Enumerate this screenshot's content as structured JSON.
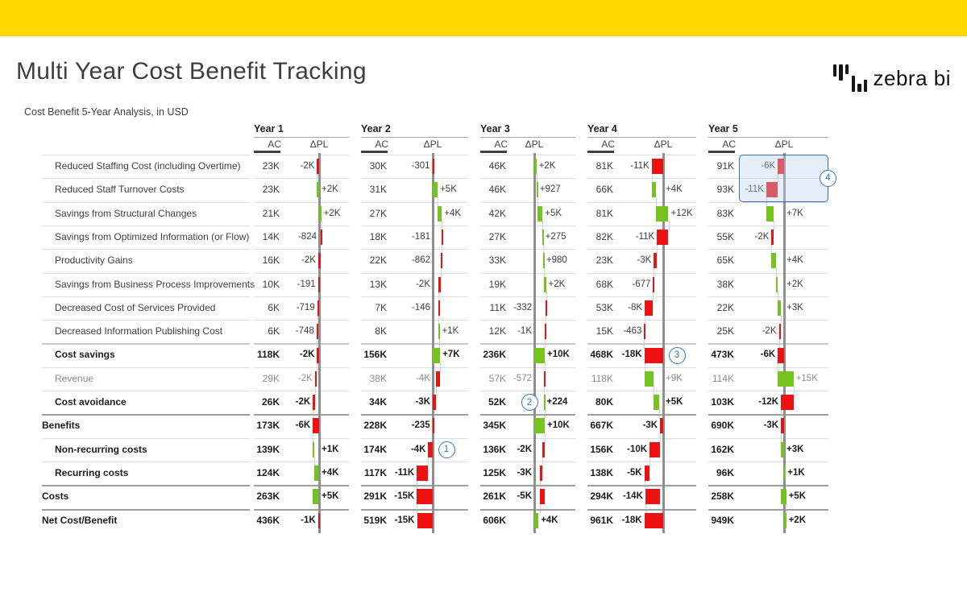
{
  "banner": {
    "color": "#ffd800"
  },
  "header": {
    "title": "Multi Year Cost Benefit Tracking",
    "logo_text": "zebra bi",
    "logo_icon": "zebra-bi-bars-icon"
  },
  "chart_data": {
    "type": "table",
    "title": "Cost Benefit 5-Year Analysis, in USD",
    "unit": "USD",
    "years": [
      "Year 1",
      "Year 2",
      "Year 3",
      "Year 4",
      "Year 5"
    ],
    "columns_per_year": [
      "AC",
      "ΔPL"
    ],
    "variance_chart": "waterfall",
    "colors": {
      "positive": "#74c41d",
      "negative": "#ee1111",
      "axis": "#8f8f8f",
      "annotation": "#2e75b6",
      "highlight_fill": "rgba(186,210,238,0.38)"
    },
    "rows": [
      {
        "label": "Reduced Staffing Cost (including Overtime)",
        "indent": 1,
        "bold": false,
        "muted": false,
        "type": "detail",
        "ac": [
          "23K",
          "30K",
          "46K",
          "81K",
          "91K"
        ],
        "dpl_labels": [
          "-2K",
          "-301",
          "+2K",
          "-11K",
          "-6K"
        ],
        "dpl_values": [
          -2,
          -0.301,
          2,
          -11,
          -6
        ]
      },
      {
        "label": "Reduced Staff Turnover Costs",
        "indent": 1,
        "bold": false,
        "muted": false,
        "type": "detail",
        "ac": [
          "23K",
          "31K",
          "46K",
          "66K",
          "93K"
        ],
        "dpl_labels": [
          "+2K",
          "+5K",
          "+927",
          "+4K",
          "-11K"
        ],
        "dpl_values": [
          2,
          5,
          0.927,
          4,
          -11
        ]
      },
      {
        "label": "Savings from Structural Changes",
        "indent": 1,
        "bold": false,
        "muted": false,
        "type": "detail",
        "ac": [
          "21K",
          "27K",
          "42K",
          "81K",
          "83K"
        ],
        "dpl_labels": [
          "+2K",
          "+4K",
          "+5K",
          "+12K",
          "+7K"
        ],
        "dpl_values": [
          2,
          4,
          5,
          12,
          7
        ]
      },
      {
        "label": "Savings from Optimized Information (or Flow)",
        "indent": 1,
        "bold": false,
        "muted": false,
        "type": "detail",
        "ac": [
          "14K",
          "18K",
          "27K",
          "82K",
          "55K"
        ],
        "dpl_labels": [
          "-824",
          "-181",
          "+275",
          "-11K",
          "-2K"
        ],
        "dpl_values": [
          -0.824,
          -0.181,
          0.275,
          -11,
          -2
        ]
      },
      {
        "label": "Productivity Gains",
        "indent": 1,
        "bold": false,
        "muted": false,
        "type": "detail",
        "ac": [
          "16K",
          "22K",
          "33K",
          "23K",
          "65K"
        ],
        "dpl_labels": [
          "-2K",
          "-862",
          "+980",
          "-3K",
          "+4K"
        ],
        "dpl_values": [
          -2,
          -0.862,
          0.98,
          -3,
          4
        ]
      },
      {
        "label": "Savings from Business Process Improvements",
        "indent": 1,
        "bold": false,
        "muted": false,
        "type": "detail",
        "ac": [
          "10K",
          "13K",
          "19K",
          "68K",
          "38K"
        ],
        "dpl_labels": [
          "-191",
          "-2K",
          "+2K",
          "-677",
          "+2K"
        ],
        "dpl_values": [
          -0.191,
          -2,
          2,
          -0.677,
          2
        ]
      },
      {
        "label": "Decreased Cost of Services Provided",
        "indent": 1,
        "bold": false,
        "muted": false,
        "type": "detail",
        "ac": [
          "6K",
          "7K",
          "11K",
          "53K",
          "22K"
        ],
        "dpl_labels": [
          "-719",
          "-146",
          "-332",
          "-8K",
          "+3K"
        ],
        "dpl_values": [
          -0.719,
          -0.146,
          -0.332,
          -8,
          3
        ]
      },
      {
        "label": "Decreased Information Publishing Cost",
        "indent": 1,
        "bold": false,
        "muted": false,
        "type": "detail",
        "ac": [
          "6K",
          "8K",
          "12K",
          "15K",
          "25K"
        ],
        "dpl_labels": [
          "-748",
          "+1K",
          "-1K",
          "-463",
          "-2K"
        ],
        "dpl_values": [
          -0.748,
          1,
          -1,
          -0.463,
          -2
        ]
      },
      {
        "label": "Cost savings",
        "indent": 1,
        "bold": true,
        "muted": false,
        "type": "total",
        "ac": [
          "118K",
          "156K",
          "236K",
          "468K",
          "473K"
        ],
        "dpl_labels": [
          "-2K",
          "+7K",
          "+10K",
          "-18K",
          "-6K"
        ],
        "dpl_values": [
          -2,
          7,
          10,
          -18,
          -6
        ]
      },
      {
        "label": "Revenue",
        "indent": 1,
        "bold": false,
        "muted": true,
        "type": "detail",
        "ac": [
          "29K",
          "38K",
          "57K",
          "118K",
          "114K"
        ],
        "dpl_labels": [
          "-2K",
          "-4K",
          "-572",
          "+9K",
          "+15K"
        ],
        "dpl_values": [
          -2,
          -4,
          -0.572,
          9,
          15
        ]
      },
      {
        "label": "Cost avoidance",
        "indent": 1,
        "bold": true,
        "muted": false,
        "type": "detail",
        "ac": [
          "26K",
          "34K",
          "52K",
          "80K",
          "103K"
        ],
        "dpl_labels": [
          "-2K",
          "-3K",
          "+224",
          "+5K",
          "-12K"
        ],
        "dpl_values": [
          -2,
          -3,
          0.224,
          5,
          -12
        ]
      },
      {
        "label": "Benefits",
        "indent": 0,
        "bold": true,
        "muted": false,
        "type": "total",
        "set_anchor": true,
        "section_line": true,
        "ac": [
          "173K",
          "228K",
          "345K",
          "667K",
          "690K"
        ],
        "dpl_labels": [
          "-6K",
          "-235",
          "+10K",
          "-3K",
          "-3K"
        ],
        "dpl_values": [
          -6,
          -0.235,
          10,
          -3,
          -3
        ]
      },
      {
        "label": "Non-recurring costs",
        "indent": 1,
        "bold": true,
        "muted": false,
        "type": "detail",
        "ac": [
          "139K",
          "174K",
          "136K",
          "156K",
          "162K"
        ],
        "dpl_labels": [
          "+1K",
          "-4K",
          "-2K",
          "-10K",
          "+3K"
        ],
        "dpl_values": [
          1,
          -4,
          -2,
          -10,
          3
        ]
      },
      {
        "label": "Recurring costs",
        "indent": 1,
        "bold": true,
        "muted": false,
        "type": "detail",
        "ac": [
          "124K",
          "117K",
          "125K",
          "138K",
          "96K"
        ],
        "dpl_labels": [
          "+4K",
          "-11K",
          "-3K",
          "-5K",
          "+1K"
        ],
        "dpl_values": [
          4,
          -11,
          -3,
          -5,
          1
        ]
      },
      {
        "label": "Costs",
        "indent": 0,
        "bold": true,
        "muted": false,
        "type": "total_anchor",
        "section_line": true,
        "ac": [
          "263K",
          "291K",
          "261K",
          "294K",
          "258K"
        ],
        "dpl_labels": [
          "+5K",
          "-15K",
          "-5K",
          "-14K",
          "+5K"
        ],
        "dpl_values": [
          5,
          -15,
          -5,
          -14,
          5
        ]
      },
      {
        "label": "Net Cost/Benefit",
        "indent": 0,
        "bold": true,
        "muted": false,
        "type": "total",
        "section_line": true,
        "ac": [
          "436K",
          "519K",
          "606K",
          "961K",
          "949K"
        ],
        "dpl_labels": [
          "-1K",
          "-15K",
          "+4K",
          "-18K",
          "+2K"
        ],
        "dpl_values": [
          -1,
          -15,
          4,
          -18,
          2
        ]
      }
    ]
  },
  "annotations": {
    "circles": [
      {
        "label": "1",
        "year": 2,
        "row": 13,
        "side": "right"
      },
      {
        "label": "2",
        "year": 3,
        "row": 11,
        "side": "left"
      },
      {
        "label": "3",
        "year": 4,
        "row": 9,
        "side": "right"
      }
    ],
    "highlight": {
      "label": "4",
      "year": 5,
      "row_start": 1,
      "row_end": 2
    }
  }
}
